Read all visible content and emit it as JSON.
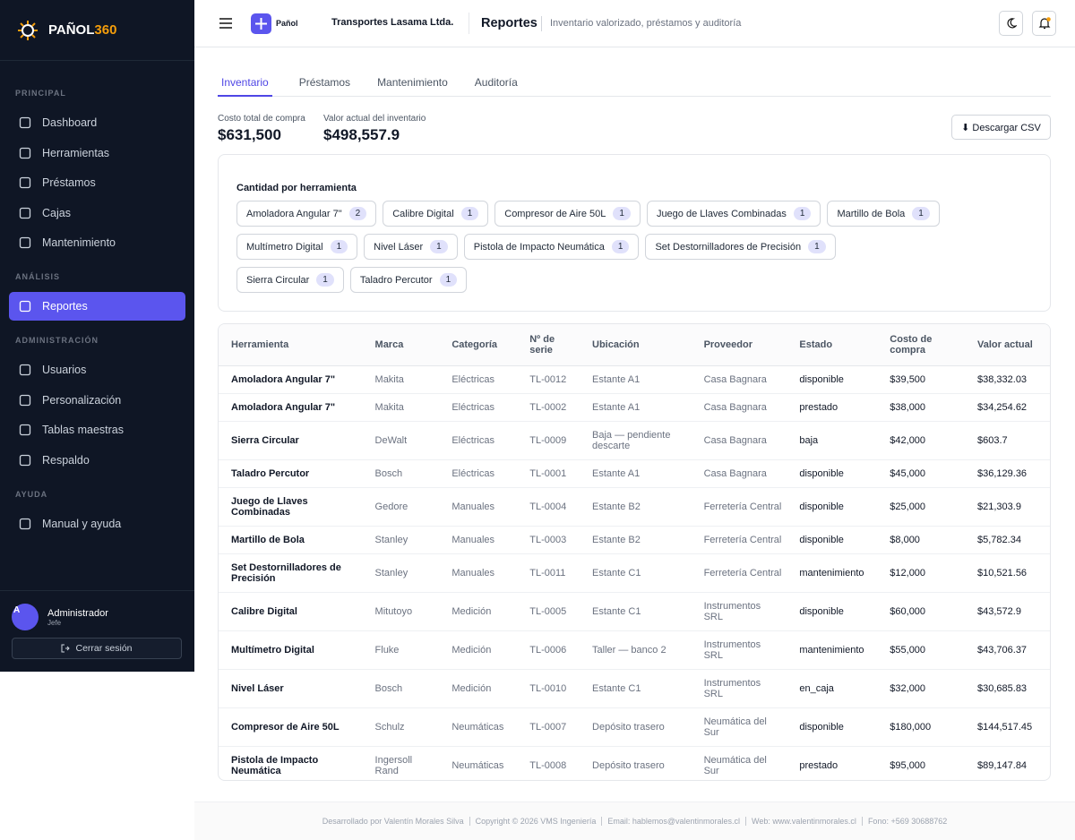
{
  "sidebar": {
    "brand": "PAÑOL",
    "brand_accent": "360",
    "sections": [
      {
        "title": "PRINCIPAL",
        "items": [
          "Dashboard",
          "Herramientas",
          "Préstamos",
          "Cajas",
          "Mantenimiento"
        ]
      },
      {
        "title": "ANÁLISIS",
        "items": [
          "Reportes"
        ]
      },
      {
        "title": "ADMINISTRACIÓN",
        "items": [
          "Usuarios",
          "Personalización",
          "Tablas maestras",
          "Respaldo"
        ]
      },
      {
        "title": "AYUDA",
        "items": [
          "Manual y ayuda"
        ]
      }
    ],
    "user": {
      "initial": "A",
      "name": "Administrador",
      "role": "Jefe"
    },
    "logout": "Cerrar sesión"
  },
  "header": {
    "app": "Pañol",
    "company": "Transportes Lasama Ltda.",
    "title": "Reportes",
    "subtitle": "Inventario valorizado, préstamos y auditoría"
  },
  "tabs": [
    "Inventario",
    "Préstamos",
    "Mantenimiento",
    "Auditoría"
  ],
  "summary": [
    {
      "label": "Costo total de compra",
      "value": "$631,500"
    },
    {
      "label": "Valor actual del inventario",
      "value": "$498,557.9"
    }
  ],
  "download": "⬇ Descargar CSV",
  "chips": {
    "title": "Cantidad por herramienta",
    "items": [
      {
        "name": "Amoladora Angular 7\"",
        "count": 2
      },
      {
        "name": "Calibre Digital",
        "count": 1
      },
      {
        "name": "Compresor de Aire 50L",
        "count": 1
      },
      {
        "name": "Juego de Llaves Combinadas",
        "count": 1
      },
      {
        "name": "Martillo de Bola",
        "count": 1
      },
      {
        "name": "Multímetro Digital",
        "count": 1
      },
      {
        "name": "Nivel Láser",
        "count": 1
      },
      {
        "name": "Pistola de Impacto Neumática",
        "count": 1
      },
      {
        "name": "Set Destornilladores de Precisión",
        "count": 1
      },
      {
        "name": "Sierra Circular",
        "count": 1
      },
      {
        "name": "Taladro Percutor",
        "count": 1
      }
    ]
  },
  "table": {
    "columns": [
      "Herramienta",
      "Marca",
      "Categoría",
      "Nº de serie",
      "Ubicación",
      "Proveedor",
      "Estado",
      "Costo de compra",
      "Valor actual"
    ],
    "rows": [
      [
        "Amoladora Angular 7\"",
        "Makita",
        "Eléctricas",
        "TL-0012",
        "Estante A1",
        "Casa Bagnara",
        "disponible",
        "$39,500",
        "$38,332.03"
      ],
      [
        "Amoladora Angular 7\"",
        "Makita",
        "Eléctricas",
        "TL-0002",
        "Estante A1",
        "Casa Bagnara",
        "prestado",
        "$38,000",
        "$34,254.62"
      ],
      [
        "Sierra Circular",
        "DeWalt",
        "Eléctricas",
        "TL-0009",
        "Baja — pendiente descarte",
        "Casa Bagnara",
        "baja",
        "$42,000",
        "$603.7"
      ],
      [
        "Taladro Percutor",
        "Bosch",
        "Eléctricas",
        "TL-0001",
        "Estante A1",
        "Casa Bagnara",
        "disponible",
        "$45,000",
        "$36,129.36"
      ],
      [
        "Juego de Llaves Combinadas",
        "Gedore",
        "Manuales",
        "TL-0004",
        "Estante B2",
        "Ferretería Central",
        "disponible",
        "$25,000",
        "$21,303.9"
      ],
      [
        "Martillo de Bola",
        "Stanley",
        "Manuales",
        "TL-0003",
        "Estante B2",
        "Ferretería Central",
        "disponible",
        "$8,000",
        "$5,782.34"
      ],
      [
        "Set Destornilladores de Precisión",
        "Stanley",
        "Manuales",
        "TL-0011",
        "Estante C1",
        "Ferretería Central",
        "mantenimiento",
        "$12,000",
        "$10,521.56"
      ],
      [
        "Calibre Digital",
        "Mitutoyo",
        "Medición",
        "TL-0005",
        "Estante C1",
        "Instrumentos SRL",
        "disponible",
        "$60,000",
        "$43,572.9"
      ],
      [
        "Multímetro Digital",
        "Fluke",
        "Medición",
        "TL-0006",
        "Taller — banco 2",
        "Instrumentos SRL",
        "mantenimiento",
        "$55,000",
        "$43,706.37"
      ],
      [
        "Nivel Láser",
        "Bosch",
        "Medición",
        "TL-0010",
        "Estante C1",
        "Instrumentos SRL",
        "en_caja",
        "$32,000",
        "$30,685.83"
      ],
      [
        "Compresor de Aire 50L",
        "Schulz",
        "Neumáticas",
        "TL-0007",
        "Depósito trasero",
        "Neumática del Sur",
        "disponible",
        "$180,000",
        "$144,517.45"
      ],
      [
        "Pistola de Impacto Neumática",
        "Ingersoll Rand",
        "Neumáticas",
        "TL-0008",
        "Depósito trasero",
        "Neumática del Sur",
        "prestado",
        "$95,000",
        "$89,147.84"
      ]
    ]
  },
  "footer": [
    "Desarrollado por Valentín Morales Silva",
    "Copyright © 2026 VMS Ingeniería",
    "Email: hablemos@valentinmorales.cl",
    "Web: www.valentinmorales.cl",
    "Fono: +569 30688762"
  ]
}
